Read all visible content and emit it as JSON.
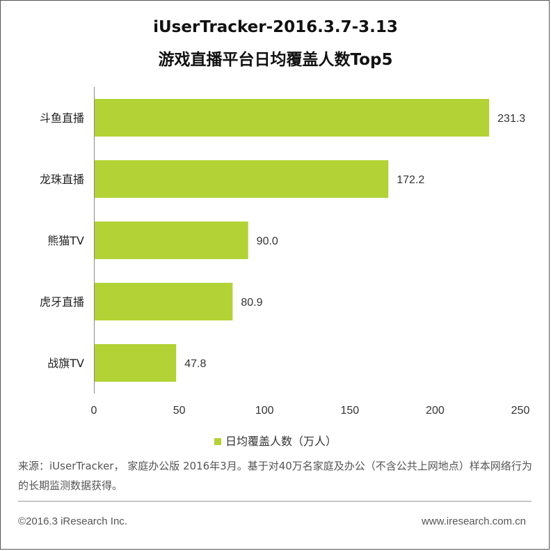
{
  "chart_data": {
    "type": "bar",
    "orientation": "horizontal",
    "title": "iUserTracker-2016.3.7-3.13",
    "subtitle": "游戏直播平台日均覆盖人数Top5",
    "categories": [
      "斗鱼直播",
      "龙珠直播",
      "熊猫TV",
      "虎牙直播",
      "战旗TV"
    ],
    "series": [
      {
        "name": "日均覆盖人数（万人）",
        "values": [
          231.3,
          172.2,
          90.0,
          80.9,
          47.8
        ],
        "color": "#b2d235"
      }
    ],
    "value_labels": [
      "231.3",
      "172.2",
      "90.0",
      "80.9",
      "47.8"
    ],
    "xticks": [
      0,
      50,
      100,
      150,
      200,
      250
    ],
    "xlim": [
      0,
      250
    ],
    "grid": false,
    "legend_position": "bottom"
  },
  "footer": {
    "source": "来源：iUserTracker， 家庭办公版 2016年3月。基于对40万名家庭及办公（不含公共上网地点）样本网络行为的长期监测数据获得。",
    "copyright": "©2016.3 iResearch Inc.",
    "website": "www.iresearch.com.cn"
  }
}
